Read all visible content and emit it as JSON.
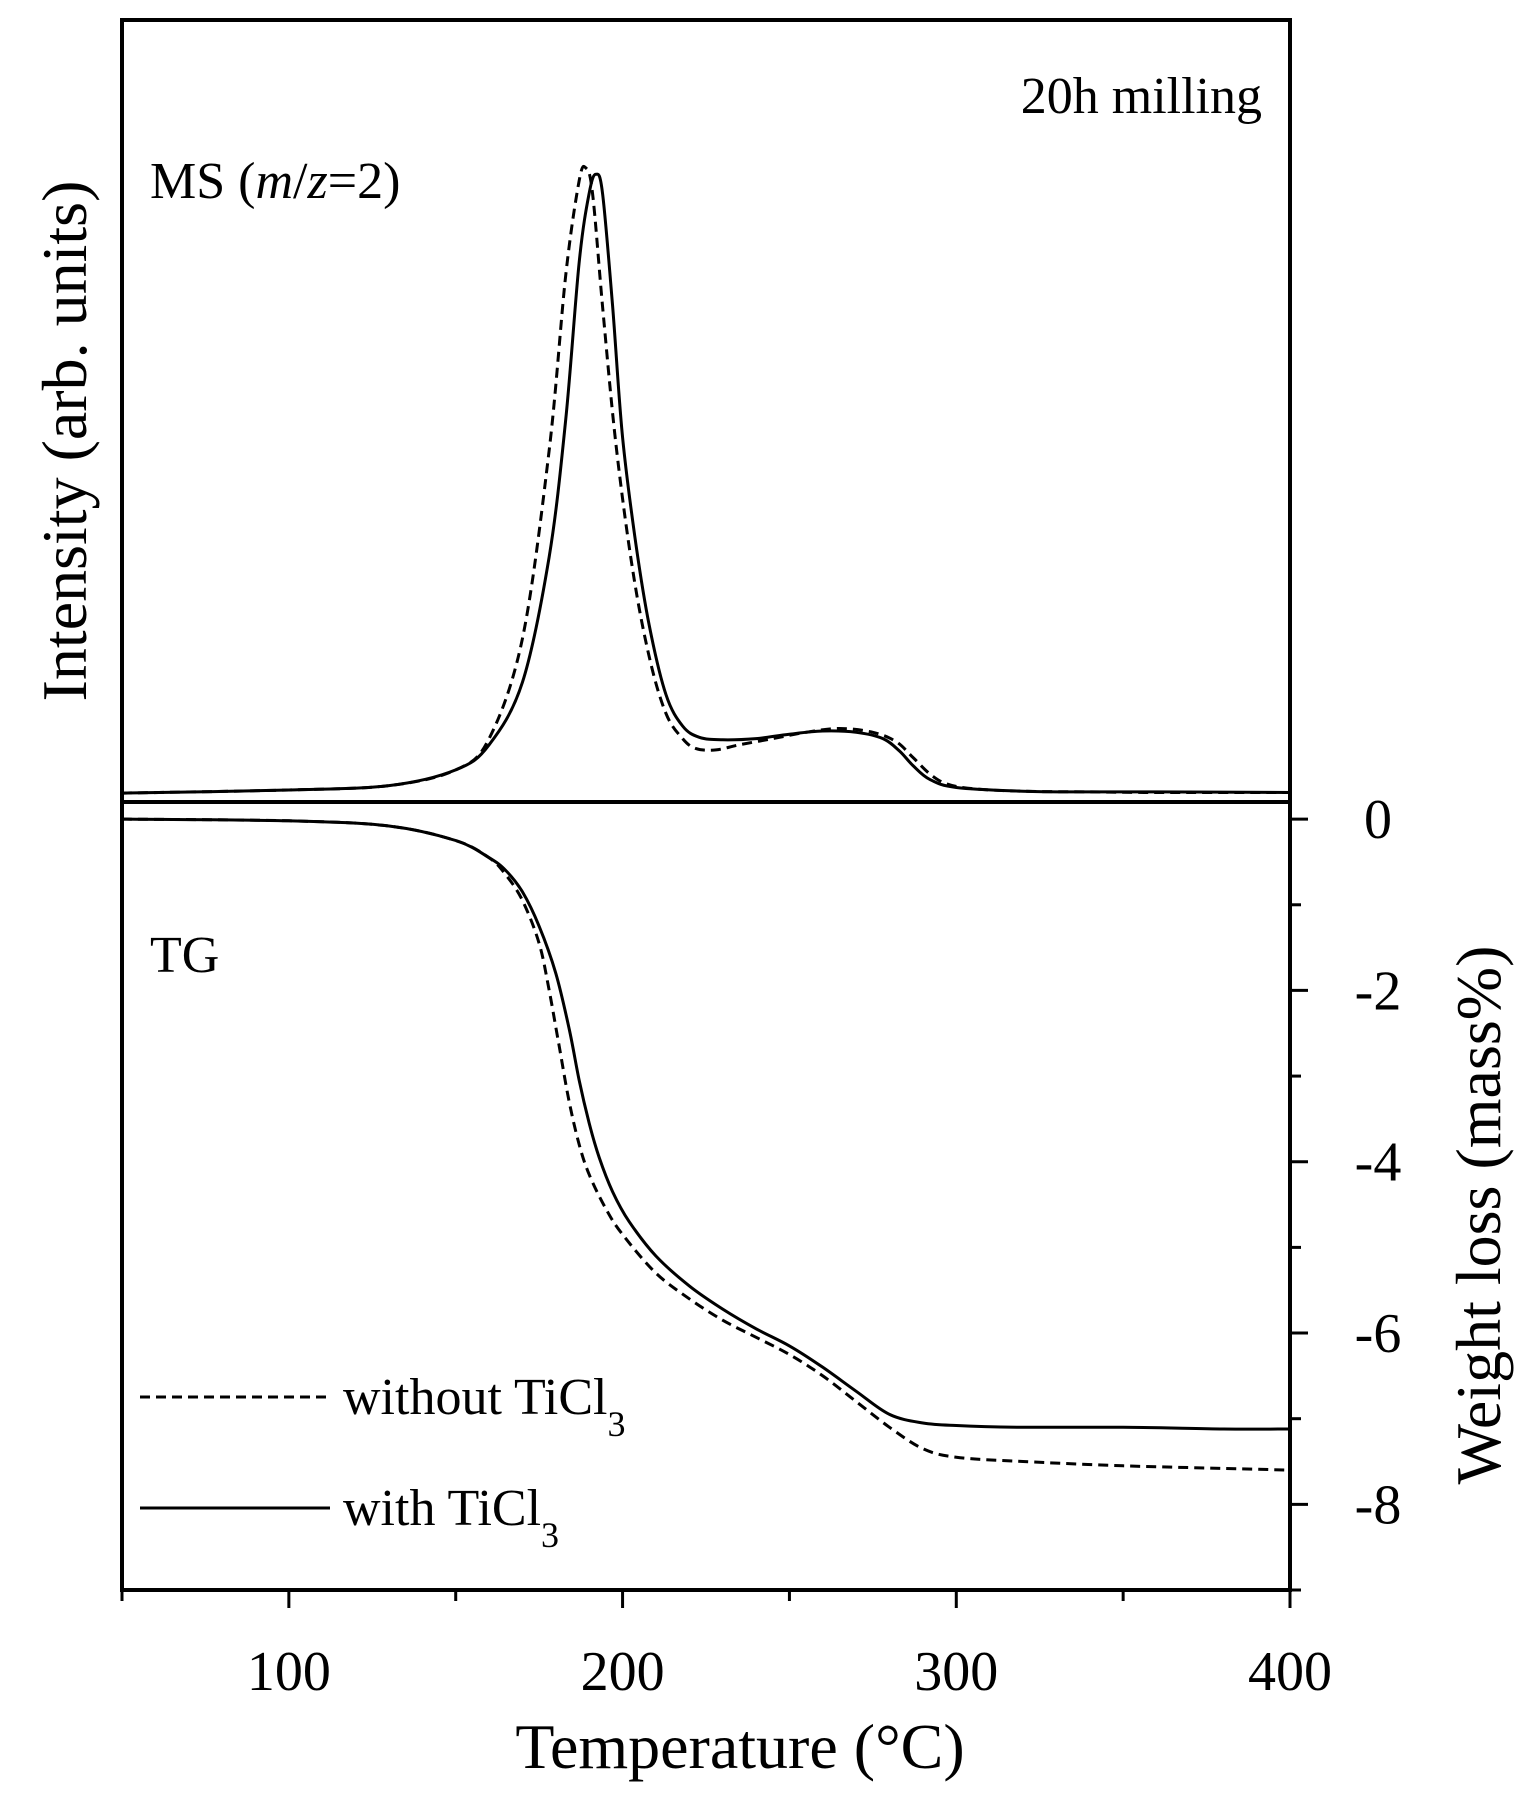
{
  "chart_data": [
    {
      "panel": "MS",
      "type": "line",
      "panel_label": "MS (m/z=2)",
      "panel_label_parts": {
        "prefix": "MS (",
        "m": "m",
        "slash": "/",
        "z": "z",
        "suffix": "=2)"
      },
      "annotation": "20h milling",
      "ylabel": "Intensity (arb. units)",
      "xlim": [
        50,
        400
      ],
      "ylim": [
        0,
        1.0
      ],
      "y_ticks": [],
      "series": [
        {
          "name": "without TiCl3",
          "style": "dashed",
          "x": [
            50,
            100,
            130,
            150,
            160,
            170,
            178,
            183,
            187,
            189,
            191,
            194,
            198,
            203,
            208,
            213,
            218,
            222,
            228,
            235,
            245,
            255,
            265,
            275,
            282,
            287,
            292,
            297,
            305,
            320,
            340,
            360,
            400
          ],
          "y": [
            0.003,
            0.008,
            0.015,
            0.04,
            0.09,
            0.25,
            0.55,
            0.83,
            0.98,
            1.0,
            0.96,
            0.78,
            0.56,
            0.36,
            0.22,
            0.13,
            0.09,
            0.074,
            0.072,
            0.08,
            0.09,
            0.1,
            0.106,
            0.1,
            0.085,
            0.06,
            0.034,
            0.018,
            0.01,
            0.006,
            0.005,
            0.004,
            0.004
          ]
        },
        {
          "name": "with TiCl3",
          "style": "solid",
          "x": [
            50,
            100,
            130,
            150,
            160,
            170,
            178,
            183,
            187,
            190,
            192,
            194,
            197,
            200,
            204,
            208,
            213,
            218,
            223,
            230,
            240,
            250,
            260,
            270,
            278,
            283,
            287,
            292,
            300,
            320,
            340,
            360,
            400
          ],
          "y": [
            0.003,
            0.008,
            0.015,
            0.04,
            0.08,
            0.18,
            0.38,
            0.6,
            0.85,
            0.96,
            0.99,
            0.96,
            0.78,
            0.57,
            0.4,
            0.27,
            0.16,
            0.11,
            0.092,
            0.088,
            0.09,
            0.097,
            0.102,
            0.1,
            0.09,
            0.07,
            0.047,
            0.025,
            0.012,
            0.006,
            0.005,
            0.005,
            0.004
          ]
        }
      ]
    },
    {
      "panel": "TG",
      "type": "line",
      "panel_label": "TG",
      "xlabel": "Temperature (°C)",
      "ylabel": "Weight loss (mass%)",
      "xlim": [
        50,
        400
      ],
      "ylim": [
        -9,
        0.2
      ],
      "x_ticks": [
        100,
        200,
        300,
        400
      ],
      "x_tick_labels": [
        "100",
        "200",
        "300",
        "400"
      ],
      "y_ticks": [
        0,
        -2,
        -4,
        -6,
        -8
      ],
      "y_tick_labels": [
        "0",
        "-2",
        "-4",
        "-6",
        "-8"
      ],
      "series": [
        {
          "name": "without TiCl3",
          "style": "dashed",
          "x": [
            50,
            100,
            130,
            150,
            160,
            165,
            170,
            175,
            178,
            181,
            184,
            187,
            190,
            195,
            200,
            210,
            220,
            230,
            240,
            250,
            260,
            270,
            280,
            290,
            300,
            320,
            350,
            380,
            400
          ],
          "y": [
            0,
            -0.02,
            -0.08,
            -0.25,
            -0.45,
            -0.65,
            -0.95,
            -1.45,
            -2.0,
            -2.65,
            -3.3,
            -3.8,
            -4.15,
            -4.55,
            -4.85,
            -5.3,
            -5.6,
            -5.85,
            -6.05,
            -6.25,
            -6.5,
            -6.8,
            -7.1,
            -7.35,
            -7.45,
            -7.5,
            -7.55,
            -7.58,
            -7.6
          ]
        },
        {
          "name": "with TiCl3",
          "style": "solid",
          "x": [
            50,
            100,
            130,
            150,
            160,
            165,
            170,
            175,
            180,
            184,
            187,
            190,
            193,
            197,
            202,
            210,
            220,
            230,
            240,
            250,
            260,
            270,
            280,
            290,
            300,
            320,
            350,
            380,
            400
          ],
          "y": [
            0,
            -0.02,
            -0.08,
            -0.25,
            -0.45,
            -0.6,
            -0.85,
            -1.25,
            -1.8,
            -2.45,
            -3.05,
            -3.55,
            -3.95,
            -4.35,
            -4.7,
            -5.1,
            -5.45,
            -5.72,
            -5.95,
            -6.15,
            -6.4,
            -6.68,
            -6.95,
            -7.05,
            -7.08,
            -7.1,
            -7.1,
            -7.12,
            -7.12
          ]
        }
      ]
    }
  ],
  "legend": {
    "placement": "bottom-left",
    "entries": [
      {
        "label_main": "without TiCl",
        "label_sub": "3",
        "style": "dashed"
      },
      {
        "label_main": "with TiCl",
        "label_sub": "3",
        "style": "solid"
      }
    ]
  }
}
